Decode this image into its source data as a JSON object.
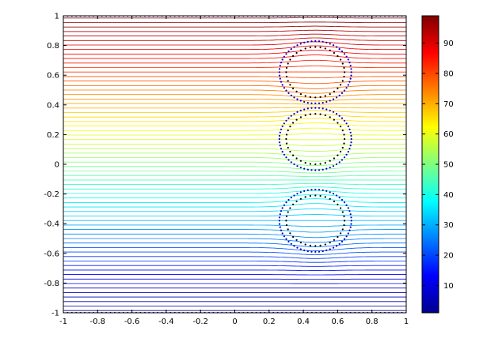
{
  "chart_data": {
    "type": "contour",
    "title": "",
    "xlabel": "",
    "ylabel": "",
    "xlim": [
      -1,
      1
    ],
    "ylim": [
      -1,
      1
    ],
    "x_ticks": [
      -1,
      -0.8,
      -0.6,
      -0.4,
      -0.2,
      0,
      0.2,
      0.4,
      0.6,
      0.8,
      1
    ],
    "x_tick_labels": [
      "-1",
      "-0.8",
      "-0.6",
      "-0.4",
      "-0.2",
      "0",
      "0.2",
      "0.4",
      "0.6",
      "0.8",
      "1"
    ],
    "y_ticks": [
      -1,
      -0.8,
      -0.6,
      -0.4,
      -0.2,
      0,
      0.2,
      0.4,
      0.6,
      0.8,
      1
    ],
    "y_tick_labels": [
      "-1",
      "-0.8",
      "-0.6",
      "-0.4",
      "-0.2",
      "0",
      "0.2",
      "0.4",
      "0.6",
      "0.8",
      "1"
    ],
    "grid": false,
    "colormap": "jet",
    "colorbar": {
      "range": [
        1,
        99
      ],
      "ticks": [
        10,
        20,
        30,
        40,
        50,
        60,
        70,
        80,
        90
      ],
      "tick_labels": [
        "10",
        "20",
        "30",
        "40",
        "50",
        "60",
        "70",
        "80",
        "90"
      ],
      "position": "right"
    },
    "contour_levels": {
      "count": 66,
      "min": 1,
      "max": 99
    },
    "inclusions": [
      {
        "center": [
          0.47,
          0.62
        ],
        "outer_radius": 0.21,
        "inner_radius": 0.17
      },
      {
        "center": [
          0.47,
          0.17
        ],
        "outer_radius": 0.21,
        "inner_radius": 0.17
      },
      {
        "center": [
          0.47,
          -0.38
        ],
        "outer_radius": 0.21,
        "inner_radius": 0.17
      }
    ],
    "boundary_marker_color": "#0000cc",
    "inner_marker_color": "#000000"
  }
}
